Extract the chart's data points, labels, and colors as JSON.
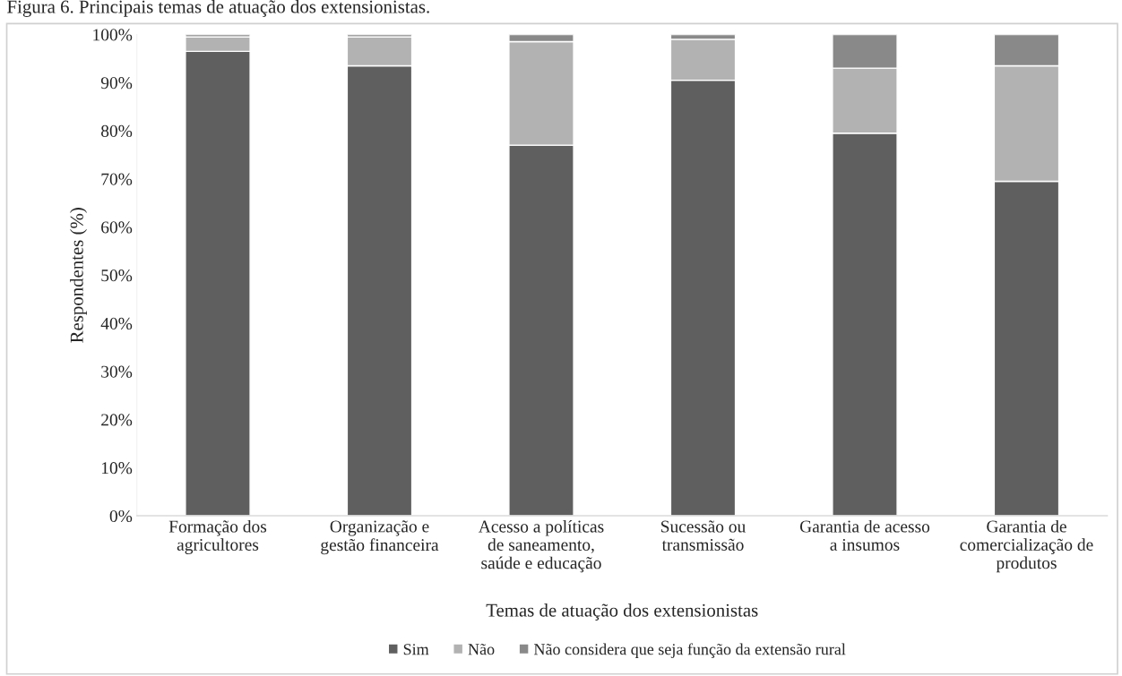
{
  "chart_data": {
    "type": "bar",
    "stacked": true,
    "title": "Figura 6. Principais temas de atuação dos extensionistas.",
    "xlabel": "Temas de atuação dos extensionistas",
    "ylabel": "Respondentes (%)",
    "categories": [
      "Formação dos\nagricultores",
      "Organização e\ngestão financeira",
      "Acesso a políticas\nde saneamento,\nsaúde e educação",
      "Sucessão ou\ntransmissão",
      "Garantia de acesso\na insumos",
      "Garantia de\ncomercialização de\nprodutos"
    ],
    "series": [
      {
        "name": "Sim",
        "color": "#5f5f5f",
        "values": [
          96.5,
          93.5,
          77,
          90.5,
          79.5,
          69.5
        ]
      },
      {
        "name": "Não",
        "color": "#b2b2b2",
        "values": [
          3,
          6,
          21.5,
          8.5,
          13.5,
          24
        ]
      },
      {
        "name": "Não considera que seja função da extensão rural",
        "color": "#898989",
        "values": [
          0.5,
          0.5,
          1.5,
          1,
          7,
          6.5
        ]
      }
    ],
    "ylim": [
      0,
      100
    ],
    "yticks": [
      {
        "value": 0,
        "label": "0%"
      },
      {
        "value": 10,
        "label": "10%"
      },
      {
        "value": 20,
        "label": "20%"
      },
      {
        "value": 30,
        "label": "30%"
      },
      {
        "value": 40,
        "label": "40%"
      },
      {
        "value": 50,
        "label": "50%"
      },
      {
        "value": 60,
        "label": "60%"
      },
      {
        "value": 70,
        "label": "70%"
      },
      {
        "value": 80,
        "label": "80%"
      },
      {
        "value": 90,
        "label": "90%"
      },
      {
        "value": 100,
        "label": "100%"
      }
    ],
    "grid": false,
    "legend": "bottom"
  }
}
